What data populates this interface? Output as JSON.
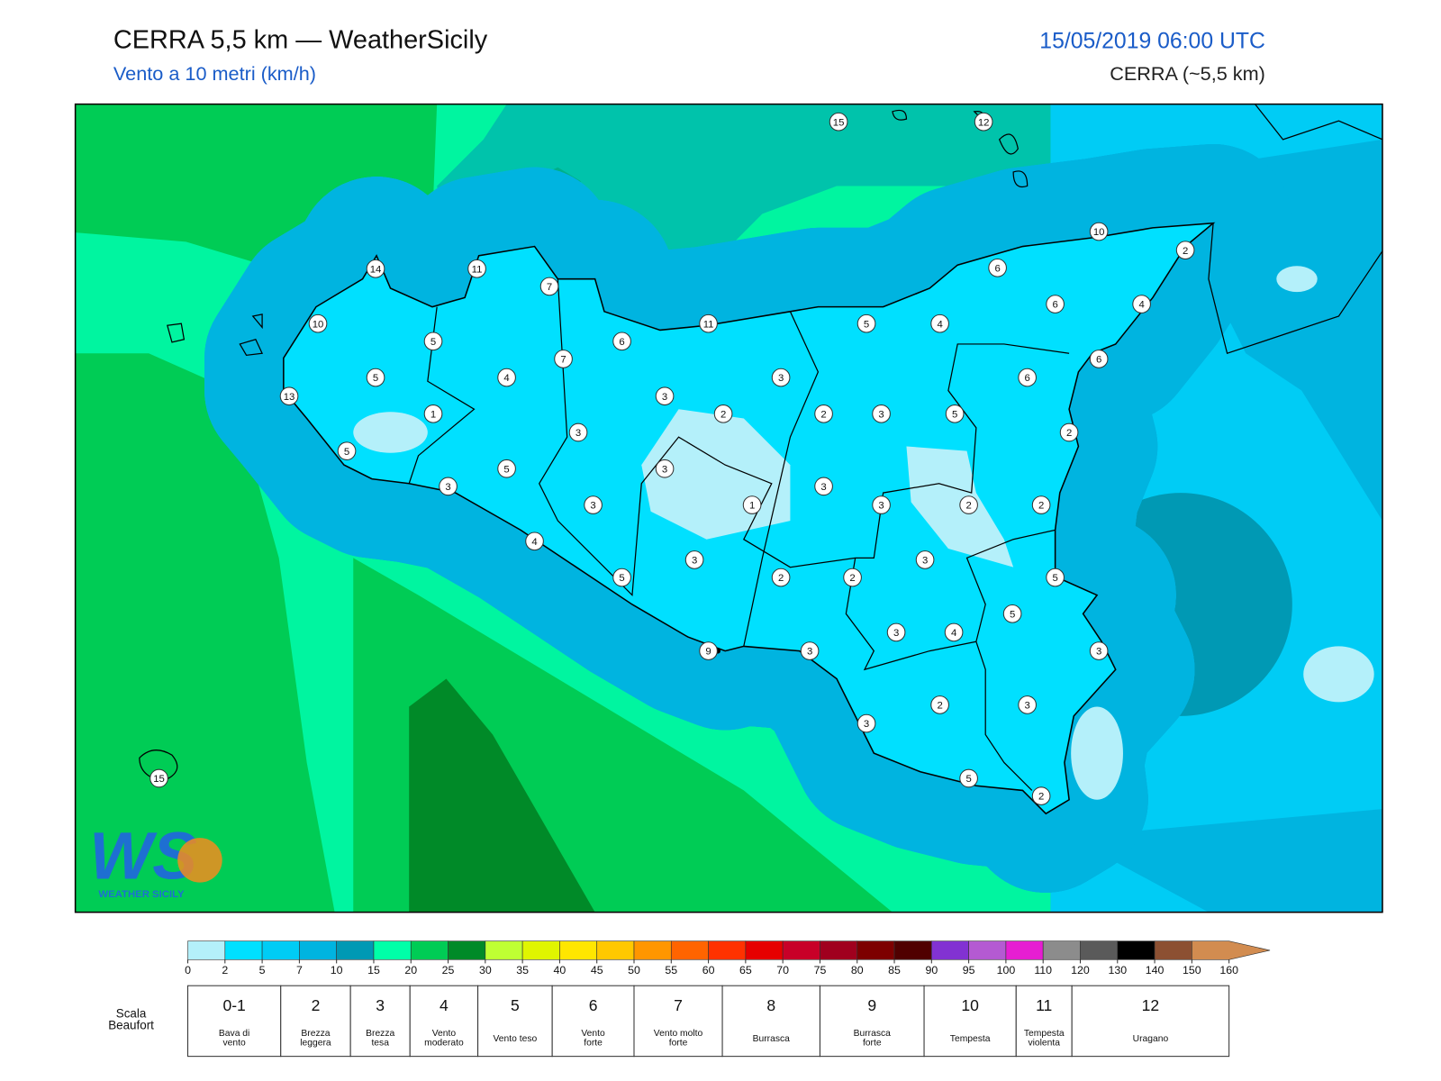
{
  "header": {
    "title": "CERRA 5,5 km — WeatherSicily",
    "subtitle": "Vento a 10 metri (km/h)",
    "datetime": "15/05/2019 06:00 UTC",
    "model": "CERRA (~5,5 km)"
  },
  "map": {
    "stations": [
      15,
      12,
      10,
      2,
      14,
      11,
      7,
      6,
      10,
      5,
      11,
      5,
      4,
      6,
      4,
      6,
      7,
      6,
      5,
      4,
      3,
      6,
      13,
      3,
      1,
      2,
      2,
      3,
      5,
      3,
      2,
      5,
      5,
      3,
      3,
      3,
      3,
      1,
      3,
      2,
      2,
      4,
      3,
      3,
      5,
      2,
      2,
      5,
      5,
      3,
      4,
      9,
      3,
      3,
      2,
      3,
      3,
      5,
      2,
      15
    ]
  },
  "logo": {
    "mark": "WS",
    "name": "WEATHER SICILY"
  },
  "colorbar": {
    "ticks": [
      0,
      2,
      5,
      7,
      10,
      15,
      20,
      25,
      30,
      35,
      40,
      45,
      50,
      55,
      60,
      65,
      70,
      75,
      80,
      85,
      90,
      95,
      100,
      110,
      120,
      130,
      140,
      150,
      160
    ],
    "colors": [
      "#b4f0fa",
      "#00e0ff",
      "#00ccf5",
      "#00b4e0",
      "#0099b4",
      "#00ffa8",
      "#00cc55",
      "#008a28",
      "#bfff33",
      "#e0f500",
      "#ffe600",
      "#ffc800",
      "#ff9600",
      "#ff6400",
      "#ff3200",
      "#e60000",
      "#c80028",
      "#a0001e",
      "#7d0000",
      "#500000",
      "#8232d2",
      "#b45ad2",
      "#e61ed2",
      "#8c8c8c",
      "#5a5a5a",
      "#000000",
      "#8c5032",
      "#d28c50"
    ]
  },
  "beaufort": {
    "label": "Scala\nBeaufort",
    "levels": [
      {
        "force": "0-1",
        "description": "Bava di\nvento"
      },
      {
        "force": 2,
        "description": "Brezza\nleggera"
      },
      {
        "force": 3,
        "description": "Brezza\ntesa"
      },
      {
        "force": 4,
        "description": "Vento\nmoderato"
      },
      {
        "force": 5,
        "description": "Vento teso"
      },
      {
        "force": 6,
        "description": "Vento\nforte"
      },
      {
        "force": 7,
        "description": "Vento molto\nforte"
      },
      {
        "force": 8,
        "description": "Burrasca"
      },
      {
        "force": 9,
        "description": "Burrasca\nforte"
      },
      {
        "force": 10,
        "description": "Tempesta"
      },
      {
        "force": 11,
        "description": "Tempesta\nviolenta"
      },
      {
        "force": 12,
        "description": "Uragano"
      }
    ]
  }
}
